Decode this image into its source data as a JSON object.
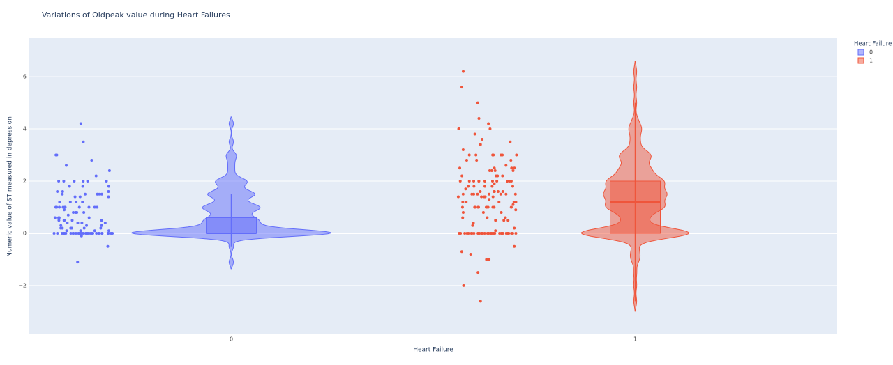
{
  "chart_data": {
    "type": "violin",
    "title": "Variations of Oldpeak value during Heart Failures",
    "x_label": "Heart Failure",
    "y_label": "Numeric value of ST measured in depression",
    "legend_title": "Heart Failure",
    "categories": [
      "0",
      "1"
    ],
    "ylim": [
      -3.87,
      7.47
    ],
    "yticks": [
      {
        "value": -2,
        "label": "−2"
      },
      0,
      2,
      4,
      6
    ],
    "grid": true,
    "series": [
      {
        "name": "0",
        "color": "#636efa",
        "box": {
          "q1": 0,
          "median": 0,
          "q3": 0.6,
          "lowerfence": -0.5,
          "upperfence": 1.5
        },
        "values": [
          0,
          0,
          0,
          0,
          0,
          0,
          0,
          0,
          0,
          0,
          0,
          0,
          0,
          0,
          0,
          0,
          0,
          0,
          0,
          0,
          0,
          0,
          0,
          0,
          0,
          0,
          0,
          0,
          0,
          0,
          0,
          0,
          0,
          0,
          0,
          0,
          0,
          0,
          0,
          0,
          0.1,
          0.1,
          0.1,
          0.1,
          0.2,
          0.2,
          0.2,
          0.2,
          0.2,
          0.2,
          0.3,
          0.3,
          0.3,
          0.4,
          0.4,
          0.4,
          0.4,
          0.5,
          0.5,
          0.5,
          0.5,
          0.5,
          0.6,
          0.6,
          0.6,
          0.6,
          0.7,
          0.8,
          0.8,
          0.8,
          0.8,
          0.9,
          1,
          1,
          1,
          1,
          1,
          1,
          1,
          1,
          1,
          1,
          1.2,
          1.2,
          1.2,
          1.2,
          1.4,
          1.4,
          1.4,
          1.5,
          1.5,
          1.5,
          1.5,
          1.5,
          1.5,
          1.6,
          1.6,
          1.6,
          1.8,
          1.8,
          1.8,
          2,
          2,
          2,
          2,
          2,
          2,
          2.2,
          2.4,
          2.6,
          2.8,
          3,
          3,
          3.5,
          4.2,
          -0.1,
          -0.5,
          -1.1
        ]
      },
      {
        "name": "1",
        "color": "#ef553b",
        "box": {
          "q1": 0,
          "median": 1.2,
          "q3": 2,
          "lowerfence": -2.6,
          "upperfence": 5
        },
        "values": [
          0,
          0,
          0,
          0,
          0,
          0,
          0,
          0,
          0,
          0,
          0,
          0,
          0,
          0,
          0,
          0,
          0,
          0,
          0,
          0,
          0,
          0,
          0,
          0,
          0,
          0,
          0,
          0,
          0,
          0,
          0,
          0,
          0,
          0,
          0,
          0.1,
          0.2,
          0.3,
          0.4,
          0.5,
          0.5,
          0.5,
          0.6,
          0.6,
          0.6,
          0.8,
          0.8,
          0.8,
          0.9,
          1,
          1,
          1,
          1,
          1,
          1,
          1,
          1,
          1,
          1,
          1,
          1,
          1.1,
          1.2,
          1.2,
          1.2,
          1.2,
          1.2,
          1.3,
          1.4,
          1.4,
          1.4,
          1.4,
          1.4,
          1.5,
          1.5,
          1.5,
          1.5,
          1.5,
          1.5,
          1.5,
          1.5,
          1.6,
          1.6,
          1.6,
          1.6,
          1.6,
          1.7,
          1.8,
          1.8,
          1.8,
          1.8,
          1.8,
          1.9,
          2,
          2,
          2,
          2,
          2,
          2,
          2,
          2,
          2,
          2,
          2,
          2,
          2.2,
          2.2,
          2.2,
          2.2,
          2.4,
          2.4,
          2.4,
          2.4,
          2.5,
          2.5,
          2.5,
          2.5,
          2.6,
          2.8,
          2.8,
          2.8,
          3,
          3,
          3,
          3,
          3,
          3,
          3,
          3,
          3.2,
          3.4,
          3.5,
          3.6,
          3.8,
          4,
          4,
          4,
          4.2,
          4.4,
          5,
          5.6,
          6.2,
          -0.5,
          -0.7,
          -0.8,
          -1,
          -1,
          -1.5,
          -2,
          -2.6
        ]
      }
    ]
  }
}
